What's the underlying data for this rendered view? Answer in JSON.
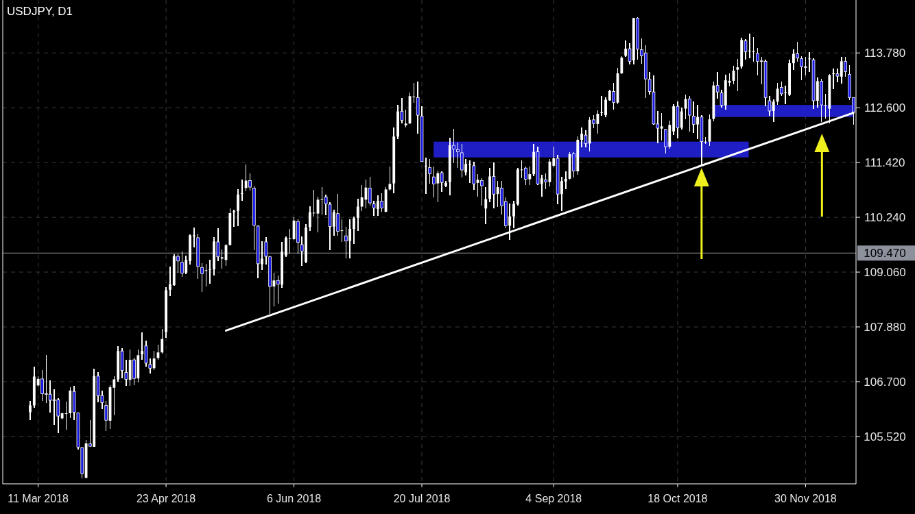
{
  "chart_data": {
    "type": "candlestick",
    "title": "USDJPY, D1",
    "categories": [
      null,
      null,
      "11 Mar 2018",
      null,
      null,
      null,
      null,
      null,
      null,
      null,
      null,
      null,
      null,
      null,
      null,
      null,
      null,
      null,
      null,
      null,
      null,
      null,
      null,
      null,
      null,
      null,
      null,
      null,
      null,
      null,
      null,
      null,
      null,
      null,
      "23 Apr 2018",
      null,
      null,
      null,
      null,
      null,
      null,
      null,
      null,
      null,
      null,
      null,
      null,
      null,
      null,
      null,
      null,
      null,
      null,
      null,
      null,
      null,
      null,
      null,
      null,
      null,
      null,
      null,
      null,
      null,
      null,
      null,
      "6 Jun 2018",
      null,
      null,
      null,
      null,
      null,
      null,
      null,
      null,
      null,
      null,
      null,
      null,
      null,
      null,
      null,
      null,
      null,
      null,
      null,
      null,
      null,
      null,
      null,
      null,
      null,
      null,
      null,
      null,
      null,
      null,
      null,
      "20 Jul 2018",
      null,
      null,
      null,
      null,
      null,
      null,
      null,
      null,
      null,
      null,
      null,
      null,
      null,
      null,
      null,
      null,
      null,
      null,
      null,
      null,
      null,
      null,
      null,
      null,
      null,
      null,
      null,
      null,
      null,
      null,
      null,
      null,
      "4 Sep 2018",
      null,
      null,
      null,
      null,
      null,
      null,
      null,
      null,
      null,
      null,
      null,
      null,
      null,
      null,
      null,
      null,
      null,
      null,
      null,
      null,
      null,
      null,
      null,
      null,
      null,
      null,
      null,
      null,
      null,
      null,
      "18 Oct 2018",
      null,
      null,
      null,
      null,
      null,
      null,
      null,
      null,
      null,
      null,
      null,
      null,
      null,
      null,
      null,
      null,
      null,
      null,
      null,
      null,
      null,
      null,
      null,
      null,
      null,
      null,
      null,
      null,
      null,
      null,
      null,
      "30 Nov 2018",
      null,
      null,
      null,
      null,
      null,
      null,
      null,
      null,
      null,
      null,
      null,
      null
    ],
    "ohlc": [
      [
        106.04,
        106.29,
        105.87,
        106.19
      ],
      [
        106.19,
        107.03,
        106.14,
        106.81
      ],
      [
        106.62,
        106.81,
        106.6,
        106.76
      ],
      [
        106.76,
        106.95,
        106.29,
        106.44
      ],
      [
        106.44,
        107.27,
        106.24,
        106.43
      ],
      [
        106.43,
        106.73,
        106.04,
        106.3
      ],
      [
        106.31,
        106.53,
        105.77,
        106.3
      ],
      [
        106.31,
        106.34,
        105.59,
        105.96
      ],
      [
        105.91,
        106.04,
        105.88,
        106.02
      ],
      [
        106.02,
        106.27,
        105.66,
        106.02
      ],
      [
        106.02,
        106.58,
        105.92,
        106.51
      ],
      [
        106.49,
        106.61,
        105.87,
        106.04
      ],
      [
        106.03,
        106.04,
        105.24,
        105.29
      ],
      [
        105.28,
        105.3,
        104.62,
        104.72
      ],
      [
        104.63,
        105.45,
        104.62,
        105.37
      ],
      [
        105.36,
        105.87,
        105.3,
        105.31
      ],
      [
        105.3,
        106.98,
        105.29,
        106.82
      ],
      [
        106.82,
        106.9,
        106.25,
        106.4
      ],
      [
        106.4,
        106.51,
        106.11,
        106.25
      ],
      [
        106.19,
        106.29,
        105.63,
        105.87
      ],
      [
        105.86,
        106.63,
        105.68,
        106.58
      ],
      [
        106.57,
        106.81,
        105.97,
        106.75
      ],
      [
        106.75,
        107.47,
        106.7,
        107.36
      ],
      [
        107.36,
        107.42,
        106.77,
        106.94
      ],
      [
        106.9,
        107.17,
        106.61,
        106.75
      ],
      [
        106.74,
        107.39,
        106.61,
        107.17
      ],
      [
        107.17,
        107.22,
        106.62,
        106.77
      ],
      [
        106.77,
        107.4,
        106.68,
        107.27
      ],
      [
        107.29,
        107.76,
        107.17,
        107.36
      ],
      [
        107.47,
        107.59,
        107.03,
        107.1
      ],
      [
        107.07,
        107.2,
        106.87,
        106.99
      ],
      [
        106.99,
        107.36,
        106.95,
        107.2
      ],
      [
        107.21,
        107.49,
        107.17,
        107.33
      ],
      [
        107.33,
        107.84,
        107.3,
        107.62
      ],
      [
        107.77,
        108.74,
        107.64,
        108.67
      ],
      [
        108.68,
        109.18,
        108.54,
        108.8
      ],
      [
        108.78,
        109.44,
        108.76,
        109.4
      ],
      [
        109.4,
        109.44,
        109.05,
        109.3
      ],
      [
        109.27,
        109.51,
        108.95,
        109.04
      ],
      [
        109.05,
        109.42,
        109.02,
        109.32
      ],
      [
        109.3,
        109.87,
        109.22,
        109.85
      ],
      [
        109.83,
        110.02,
        109.59,
        109.85
      ],
      [
        109.8,
        109.88,
        108.92,
        109.18
      ],
      [
        109.16,
        109.25,
        108.63,
        109.03
      ],
      [
        109.09,
        109.24,
        108.75,
        109.1
      ],
      [
        109.11,
        109.32,
        108.81,
        109.12
      ],
      [
        109.12,
        109.81,
        108.98,
        109.72
      ],
      [
        109.71,
        110,
        109.29,
        109.39
      ],
      [
        109.35,
        109.55,
        109.14,
        109.38
      ],
      [
        109.32,
        109.66,
        109.2,
        109.64
      ],
      [
        109.64,
        110.43,
        109.63,
        110.33
      ],
      [
        110.35,
        110.4,
        110.03,
        110.37
      ],
      [
        110.38,
        110.85,
        110.05,
        110.73
      ],
      [
        110.75,
        111.06,
        110.6,
        110.76
      ],
      [
        110.87,
        111.38,
        110.8,
        111.03
      ],
      [
        111.03,
        111.18,
        110.81,
        110.89
      ],
      [
        110.87,
        110.91,
        109.54,
        110.07
      ],
      [
        110.05,
        110.06,
        108.93,
        109.24
      ],
      [
        109.23,
        109.72,
        109.11,
        109.35
      ],
      [
        109.71,
        109.82,
        109.22,
        109.4
      ],
      [
        109.39,
        109.41,
        108.16,
        108.75
      ],
      [
        108.75,
        109.04,
        108.33,
        108.88
      ],
      [
        108.88,
        108.98,
        108.38,
        108.8
      ],
      [
        108.79,
        109.71,
        108.72,
        109.5
      ],
      [
        109.42,
        109.83,
        109.39,
        109.8
      ],
      [
        109.78,
        109.99,
        109.46,
        109.79
      ],
      [
        109.77,
        110.24,
        109.76,
        110.17
      ],
      [
        110.15,
        110.2,
        109.46,
        109.7
      ],
      [
        109.65,
        109.83,
        109.19,
        109.51
      ],
      [
        109.28,
        110.1,
        109.25,
        110.02
      ],
      [
        110.03,
        110.48,
        109.95,
        110.35
      ],
      [
        110.33,
        110.83,
        110.25,
        110.34
      ],
      [
        110.32,
        110.69,
        109.91,
        110.62
      ],
      [
        110.62,
        110.89,
        110.3,
        110.63
      ],
      [
        110.68,
        110.73,
        110.29,
        110.53
      ],
      [
        110.52,
        110.57,
        109.53,
        110.04
      ],
      [
        110.04,
        110.4,
        109.85,
        110.35
      ],
      [
        110.32,
        110.74,
        109.85,
        109.94
      ],
      [
        109.95,
        110.2,
        109.71,
        109.96
      ],
      [
        109.84,
        110.03,
        109.36,
        109.73
      ],
      [
        109.73,
        110.2,
        109.36,
        109.99
      ],
      [
        109.99,
        110.25,
        109.66,
        110.22
      ],
      [
        110.23,
        110.64,
        109.95,
        110.47
      ],
      [
        110.47,
        110.94,
        110.37,
        110.67
      ],
      [
        110.62,
        111.05,
        110.44,
        110.88
      ],
      [
        110.87,
        111.11,
        110.49,
        110.55
      ],
      [
        110.53,
        110.59,
        110.27,
        110.44
      ],
      [
        110.42,
        110.71,
        110.27,
        110.59
      ],
      [
        110.59,
        110.76,
        110.36,
        110.44
      ],
      [
        110.36,
        110.89,
        110.35,
        110.84
      ],
      [
        110.84,
        111.33,
        110.81,
        110.96
      ],
      [
        110.97,
        112.17,
        110.76,
        111.98
      ],
      [
        111.98,
        112.66,
        111.92,
        112.52
      ],
      [
        112.52,
        112.81,
        112.26,
        112.33
      ],
      [
        112.22,
        112.56,
        112.18,
        112.26
      ],
      [
        112.26,
        112.93,
        112.25,
        112.85
      ],
      [
        112.83,
        113.14,
        112.71,
        112.84
      ],
      [
        112.82,
        113.17,
        112.04,
        112.44
      ],
      [
        112.42,
        112.63,
        111.43,
        111.44
      ],
      [
        111.34,
        111.53,
        110.74,
        111.35
      ],
      [
        111.31,
        111.49,
        110.96,
        111.18
      ],
      [
        111.11,
        111.34,
        110.67,
        110.96
      ],
      [
        110.97,
        111.24,
        110.57,
        111.19
      ],
      [
        111.2,
        111.23,
        110.79,
        110.99
      ],
      [
        110.92,
        111.03,
        110.89,
        110.98
      ],
      [
        111,
        111.95,
        110.71,
        111.79
      ],
      [
        111.79,
        112.14,
        111.4,
        111.71
      ],
      [
        111.7,
        111.85,
        111.3,
        111.65
      ],
      [
        111.63,
        111.82,
        111.09,
        111.26
      ],
      [
        111.21,
        111.5,
        111.14,
        111.39
      ],
      [
        111.38,
        111.47,
        110.98,
        111.39
      ],
      [
        111.35,
        111.43,
        110.83,
        110.96
      ],
      [
        110.98,
        111.17,
        110.69,
        111.05
      ],
      [
        111.03,
        111.08,
        110.49,
        110.92
      ],
      [
        110.43,
        110.89,
        110.1,
        110.63
      ],
      [
        110.64,
        111.3,
        110.57,
        111.12
      ],
      [
        111.12,
        111.42,
        110.43,
        110.74
      ],
      [
        110.74,
        111.03,
        110.47,
        110.89
      ],
      [
        110.87,
        111.03,
        110.3,
        110.49
      ],
      [
        110.58,
        110.67,
        110,
        110.06
      ],
      [
        110.06,
        110.53,
        109.75,
        110.26
      ],
      [
        110.26,
        110.59,
        110,
        110.53
      ],
      [
        110.52,
        111.3,
        110.49,
        111.27
      ],
      [
        111.26,
        111.47,
        111.08,
        111.27
      ],
      [
        111.3,
        111.33,
        110.93,
        111.06
      ],
      [
        111.06,
        111.34,
        110.94,
        111.17
      ],
      [
        111.17,
        111.82,
        111.13,
        111.65
      ],
      [
        111.65,
        111.76,
        110.94,
        110.96
      ],
      [
        110.96,
        111.15,
        110.68,
        111.08
      ],
      [
        111.05,
        111.18,
        110.84,
        111
      ],
      [
        111,
        111.5,
        110.91,
        111.44
      ],
      [
        111.35,
        111.76,
        111.32,
        111.51
      ],
      [
        111.51,
        111.58,
        110.52,
        110.74
      ],
      [
        110.74,
        111.11,
        110.37,
        111.02
      ],
      [
        111.01,
        111.23,
        110.84,
        111.07
      ],
      [
        111.07,
        111.65,
        111.06,
        111.6
      ],
      [
        111.61,
        111.65,
        111.1,
        111.24
      ],
      [
        111.23,
        111.99,
        111.16,
        111.91
      ],
      [
        111.91,
        112.17,
        111.75,
        112.04
      ],
      [
        112.01,
        112.12,
        111.75,
        111.83
      ],
      [
        111.83,
        112.39,
        111.66,
        112.34
      ],
      [
        112.34,
        112.44,
        112.16,
        112.26
      ],
      [
        112.25,
        112.55,
        112.04,
        112.47
      ],
      [
        112.49,
        112.86,
        112.42,
        112.5
      ],
      [
        112.44,
        112.83,
        112.4,
        112.77
      ],
      [
        112.76,
        112.98,
        112.75,
        112.96
      ],
      [
        112.95,
        113.13,
        112.56,
        112.71
      ],
      [
        112.71,
        113.46,
        112.68,
        113.34
      ],
      [
        113.34,
        113.71,
        113.32,
        113.68
      ],
      [
        113.72,
        114.05,
        113.7,
        113.87
      ],
      [
        113.87,
        113.99,
        113.53,
        113.6
      ],
      [
        113.62,
        114.54,
        113.53,
        114.53
      ],
      [
        114.53,
        114.55,
        113.63,
        113.86
      ],
      [
        113.85,
        114.09,
        113.55,
        113.72
      ],
      [
        113.78,
        113.94,
        112.81,
        113.22
      ],
      [
        113.21,
        113.37,
        112.88,
        112.95
      ],
      [
        112.94,
        113.29,
        112.24,
        112.25
      ],
      [
        112.25,
        112.53,
        111.83,
        112.16
      ],
      [
        112.15,
        112.48,
        111.89,
        112.2
      ],
      [
        112.13,
        112.14,
        111.62,
        111.76
      ],
      [
        111.76,
        112.32,
        111.72,
        112.23
      ],
      [
        112.09,
        112.67,
        112.01,
        112.63
      ],
      [
        112.63,
        112.73,
        111.94,
        112.17
      ],
      [
        112.17,
        112.6,
        112.13,
        112.52
      ],
      [
        112.58,
        112.89,
        112.35,
        112.79
      ],
      [
        112.79,
        112.86,
        112.09,
        112.44
      ],
      [
        112.42,
        112.74,
        112.06,
        112.24
      ],
      [
        112.24,
        112.66,
        111.92,
        112.4
      ],
      [
        112.4,
        112.44,
        111.38,
        111.87
      ],
      [
        111.86,
        111.97,
        111.82,
        111.87
      ],
      [
        111.87,
        112.46,
        111.77,
        112.35
      ],
      [
        112.36,
        113.16,
        112.31,
        113.08
      ],
      [
        113.08,
        113.37,
        112.8,
        112.94
      ],
      [
        112.92,
        112.98,
        112.6,
        112.65
      ],
      [
        112.65,
        113.31,
        112.56,
        113.19
      ],
      [
        113.14,
        113.34,
        113.06,
        113.18
      ],
      [
        113.18,
        113.5,
        113.1,
        113.4
      ],
      [
        113.42,
        113.65,
        112.95,
        113.47
      ],
      [
        113.49,
        114.11,
        113.44,
        114.06
      ],
      [
        114.04,
        114.08,
        113.64,
        113.81
      ],
      [
        113.82,
        114.19,
        113.67,
        113.83
      ],
      [
        113.8,
        114.13,
        113.59,
        113.82
      ],
      [
        113.77,
        113.89,
        113.3,
        113.6
      ],
      [
        113.61,
        113.69,
        113.1,
        113.6
      ],
      [
        113.6,
        113.64,
        112.63,
        112.82
      ],
      [
        112.75,
        112.86,
        112.42,
        112.53
      ],
      [
        112.53,
        112.78,
        112.3,
        112.73
      ],
      [
        112.73,
        113.13,
        112.66,
        113.01
      ],
      [
        113.04,
        113.16,
        112.85,
        112.9
      ],
      [
        112.93,
        113.08,
        112.67,
        112.94
      ],
      [
        112.88,
        113.64,
        112.86,
        113.56
      ],
      [
        113.56,
        113.85,
        113.42,
        113.76
      ],
      [
        113.76,
        114.02,
        113.59,
        113.67
      ],
      [
        113.66,
        113.71,
        113.2,
        113.48
      ],
      [
        113.48,
        113.69,
        113.3,
        113.47
      ],
      [
        113.65,
        113.8,
        113.37,
        113.66
      ],
      [
        113.63,
        113.67,
        112.58,
        112.75
      ],
      [
        112.75,
        113.25,
        112.61,
        113.17
      ],
      [
        113.17,
        113.22,
        112.29,
        112.66
      ],
      [
        112.65,
        112.9,
        112.36,
        112.66
      ],
      [
        112.58,
        113.32,
        112.26,
        113.3
      ],
      [
        113.33,
        113.45,
        113,
        113.34
      ],
      [
        113.33,
        113.44,
        113.15,
        113.28
      ],
      [
        113.27,
        113.69,
        113.12,
        113.6
      ],
      [
        113.6,
        113.69,
        113.27,
        113.38
      ],
      [
        113.32,
        113.52,
        112.76,
        112.82
      ],
      [
        112.82,
        112.83,
        112.24,
        112.51
      ]
    ],
    "series": [
      {
        "type": "line",
        "color": "#ffffff",
        "values": [
          null,
          null,
          null,
          null,
          null,
          null,
          null,
          null,
          null,
          null,
          null,
          null,
          null,
          null,
          null,
          null,
          null,
          null,
          null,
          null,
          null,
          null,
          null,
          null,
          null,
          null,
          null,
          null,
          null,
          null,
          null,
          null,
          null,
          null,
          null,
          null,
          null,
          null,
          null,
          null,
          null,
          null,
          null,
          null,
          null,
          null,
          null,
          null,
          null,
          107.8,
          null,
          null,
          null,
          null,
          null,
          null,
          null,
          null,
          null,
          null,
          null,
          null,
          null,
          null,
          null,
          null,
          null,
          null,
          null,
          null,
          null,
          null,
          null,
          null,
          null,
          null,
          null,
          null,
          null,
          null,
          null,
          null,
          null,
          null,
          null,
          null,
          null,
          null,
          null,
          null,
          null,
          null,
          null,
          null,
          null,
          null,
          null,
          null,
          null,
          null,
          null,
          null,
          null,
          null,
          null,
          null,
          null,
          null,
          null,
          null,
          null,
          null,
          null,
          null,
          null,
          null,
          null,
          null,
          null,
          null,
          null,
          null,
          null,
          null,
          null,
          null,
          null,
          null,
          null,
          null,
          null,
          null,
          null,
          null,
          null,
          null,
          null,
          null,
          null,
          null,
          null,
          null,
          null,
          null,
          null,
          null,
          null,
          null,
          null,
          null,
          null,
          null,
          null,
          null,
          null,
          null,
          null,
          null,
          null,
          null,
          null,
          null,
          null,
          null,
          null,
          null,
          null,
          null,
          null,
          null,
          null,
          null,
          null,
          null,
          null,
          null,
          null,
          null,
          null,
          null,
          null,
          null,
          null,
          null,
          null,
          null,
          null,
          null,
          null,
          null,
          null,
          null,
          null,
          null,
          null,
          null,
          null,
          null,
          null,
          null,
          null,
          null,
          null,
          null,
          null,
          null,
          112.49
        ]
      }
    ],
    "ylim": [
      104.5,
      114.92
    ],
    "yticks": [
      {
        "value": 105.52,
        "label": "105.520"
      },
      {
        "value": 106.7,
        "label": "106.700"
      },
      {
        "value": 107.88,
        "label": "107.880"
      },
      {
        "value": 109.06,
        "label": "109.060"
      },
      {
        "value": 110.24,
        "label": "110.240"
      },
      {
        "value": 111.42,
        "label": "111.420"
      },
      {
        "value": 112.6,
        "label": "112.600"
      },
      {
        "value": 113.78,
        "label": "113.780"
      }
    ],
    "grid": true,
    "ref_lines": [
      {
        "axis": "y",
        "value": 109.47,
        "label": "109.470",
        "color": "#8c919c"
      }
    ],
    "bands": [
      {
        "axis": "y",
        "from": 111.53,
        "to": 111.87,
        "color": "#2323e6"
      },
      {
        "axis": "y",
        "from": 112.4,
        "to": 112.66,
        "color": "#2323e6"
      }
    ]
  }
}
